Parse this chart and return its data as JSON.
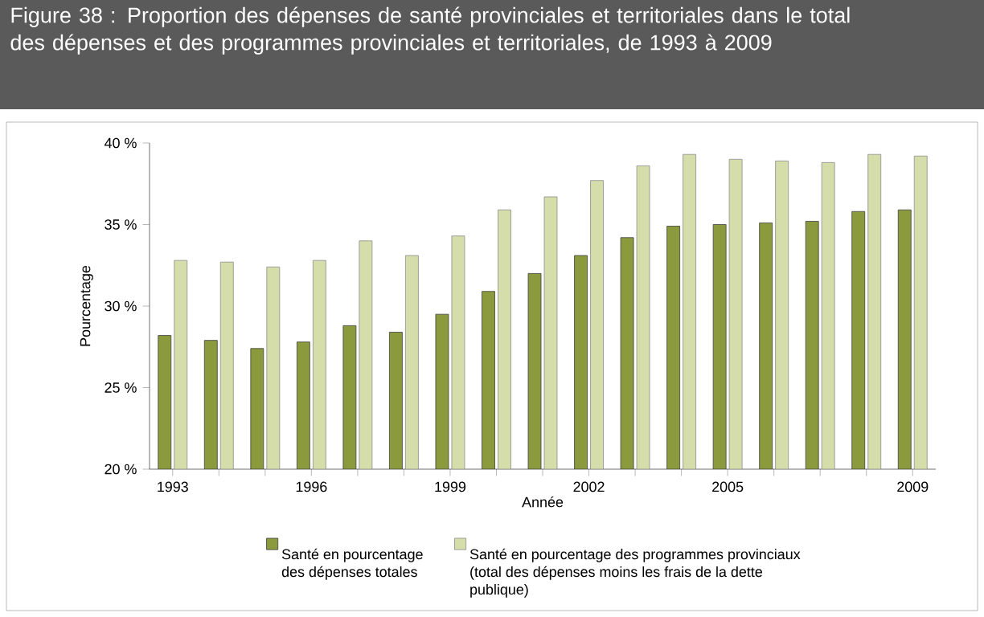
{
  "chart_data": {
    "type": "bar",
    "title": "Figure 38 : Proportion des dépenses de santé provinciales et territoriales dans le total des dépenses et des programmes provinciales et territoriales, de 1993 à 2009",
    "xlabel": "Année",
    "ylabel": "Pourcentage",
    "categories": [
      "1993",
      null,
      null,
      "1996",
      null,
      null,
      "1999",
      null,
      null,
      "2002",
      null,
      null,
      "2005",
      null,
      null,
      null,
      "2009"
    ],
    "series": [
      {
        "name": "Santé en pourcentage des dépenses totales",
        "color": "#8a9a3c",
        "values": [
          28.2,
          27.9,
          27.4,
          27.8,
          28.8,
          28.4,
          29.5,
          30.9,
          32.0,
          33.1,
          34.2,
          34.9,
          35.0,
          35.1,
          35.2,
          35.8,
          35.9
        ]
      },
      {
        "name": "Santé en pourcentage des programmes provinciaux (total des dépenses moins les frais de la dette publique)",
        "color": "#d5ddaa",
        "values": [
          32.8,
          32.7,
          32.4,
          32.8,
          34.0,
          33.1,
          34.3,
          35.9,
          36.7,
          37.7,
          38.6,
          39.3,
          39.0,
          38.9,
          38.8,
          39.3,
          39.2
        ]
      }
    ],
    "ylim": [
      20,
      40
    ],
    "yticks": [
      {
        "value": 20,
        "label": "20 %"
      },
      {
        "value": 25,
        "label": "25 %"
      },
      {
        "value": 30,
        "label": "30 %"
      },
      {
        "value": 35,
        "label": "35 %"
      },
      {
        "value": 40,
        "label": "40 %"
      }
    ],
    "grid": false,
    "legend": "bottom"
  }
}
